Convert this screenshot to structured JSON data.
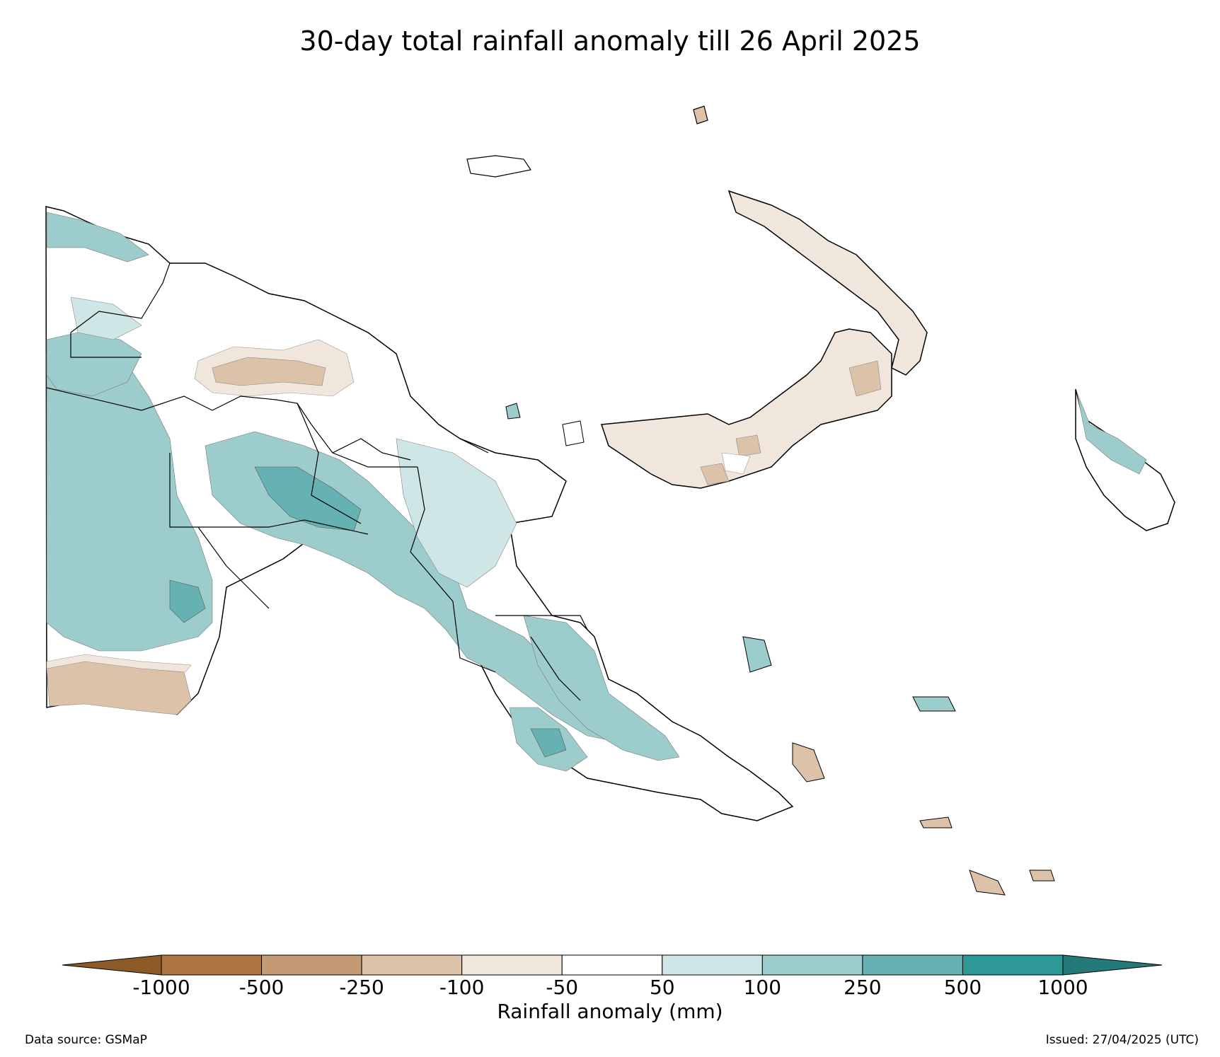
{
  "title": "30-day total rainfall anomaly till 26 April 2025",
  "colorbar": {
    "label": "Rainfall anomaly (mm)",
    "ticks": [
      "-1000",
      "-500",
      "-250",
      "-100",
      "-50",
      "50",
      "100",
      "250",
      "500",
      "1000"
    ],
    "colors": [
      "#8c5a26",
      "#ac7440",
      "#c49a74",
      "#dbc2a8",
      "#f0e6dc",
      "#ffffff",
      "#cfe6e6",
      "#9ccccc",
      "#66b2b2",
      "#2e9896",
      "#237a78"
    ]
  },
  "footer": {
    "source": "Data source: GSMaP",
    "issued": "Issued: 27/04/2025 (UTC)"
  },
  "map_legend_colors": {
    "teal_light": "#cfe6e6",
    "teal_mid": "#9ccccc",
    "teal_dark": "#66b2b2",
    "tan_light": "#f0e6dc",
    "tan_mid": "#dbc2a8",
    "tan_dark": "#c49a74"
  }
}
